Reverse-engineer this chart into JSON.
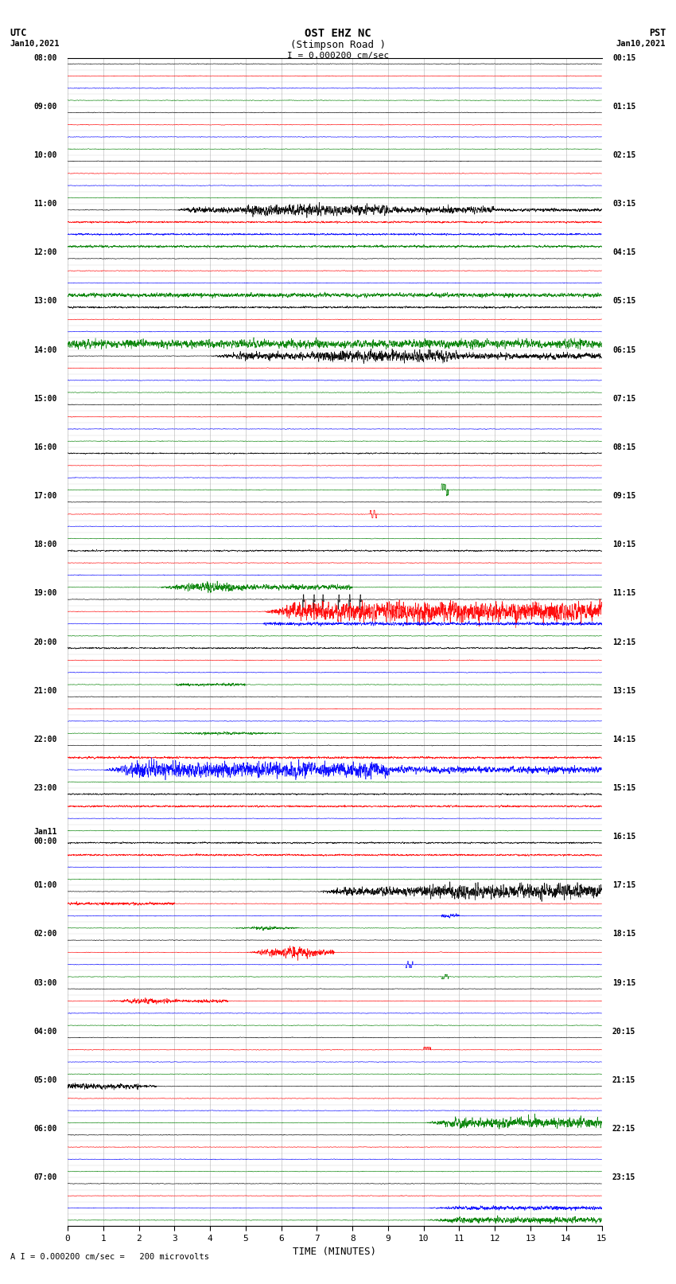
{
  "title_line1": "OST EHZ NC",
  "title_line2": "(Stimpson Road )",
  "scale_label": "I = 0.000200 cm/sec",
  "bottom_label": "A I = 0.000200 cm/sec =   200 microvolts",
  "xlabel": "TIME (MINUTES)",
  "xlim": [
    0,
    15
  ],
  "fig_width": 8.5,
  "fig_height": 16.13,
  "dpi": 100,
  "background_color": "#ffffff",
  "grid_color": "#999999",
  "trace_colors_pattern": [
    "black",
    "red",
    "blue",
    "green"
  ],
  "hour_labels_utc": [
    "08:00",
    "09:00",
    "10:00",
    "11:00",
    "12:00",
    "13:00",
    "14:00",
    "15:00",
    "16:00",
    "17:00",
    "18:00",
    "19:00",
    "20:00",
    "21:00",
    "22:00",
    "23:00",
    "Jan11\n00:00",
    "01:00",
    "02:00",
    "03:00",
    "04:00",
    "05:00",
    "06:00",
    "07:00"
  ],
  "hour_labels_pst": [
    "00:15",
    "01:15",
    "02:15",
    "03:15",
    "04:15",
    "05:15",
    "06:15",
    "07:15",
    "08:15",
    "09:15",
    "10:15",
    "11:15",
    "12:15",
    "13:15",
    "14:15",
    "15:15",
    "16:15",
    "17:15",
    "18:15",
    "19:15",
    "20:15",
    "21:15",
    "22:15",
    "23:15"
  ]
}
